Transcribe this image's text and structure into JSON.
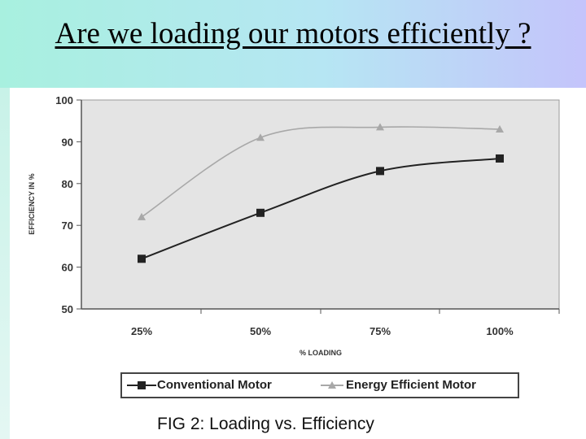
{
  "slide": {
    "title": "Are we loading our motors efficiently ?",
    "caption": "FIG 2: Loading vs. Efficiency"
  },
  "colors": {
    "header_left": "#a8f0df",
    "header_right": "#c4c4fb",
    "plot_background": "#e4e4e4",
    "conventional_series": "#222222",
    "efficient_series": "#a8a8a8"
  },
  "chart_data": {
    "type": "line",
    "title": "",
    "xlabel": "% LOADING",
    "ylabel": "EFFICIENCY IN %",
    "categories": [
      "25%",
      "50%",
      "75%",
      "100%"
    ],
    "ylim": [
      50,
      100
    ],
    "yticks": [
      "100",
      "90",
      "80",
      "70",
      "60",
      "50"
    ],
    "grid": false,
    "legend_position": "bottom",
    "series": [
      {
        "name": "Conventional Motor",
        "marker": "square",
        "values": [
          62,
          73,
          83,
          86
        ]
      },
      {
        "name": "Energy Efficient Motor",
        "marker": "triangle",
        "values": [
          72,
          91,
          93.5,
          93
        ]
      }
    ]
  }
}
